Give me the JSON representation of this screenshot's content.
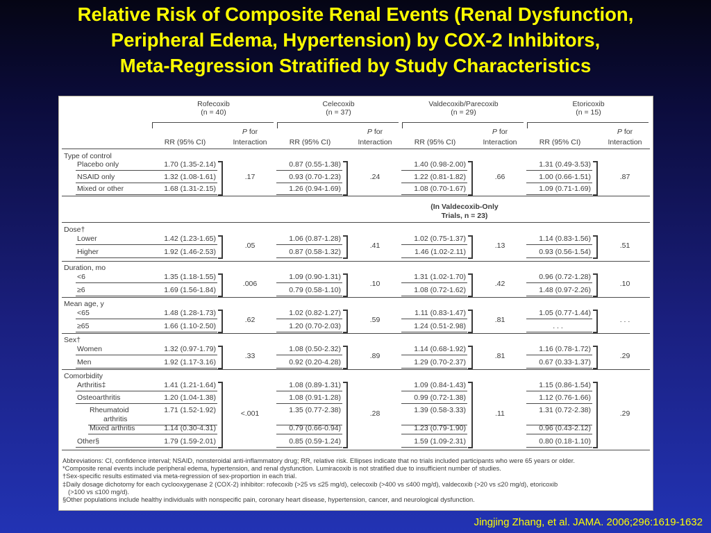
{
  "slide": {
    "title_lines": [
      "Relative Risk of Composite Renal Events (Renal Dysfunction,",
      "Peripheral Edema, Hypertension) by COX-2 Inhibitors,",
      "Meta-Regression Stratified by Study Characteristics"
    ],
    "citation": "Jingjing Zhang,  et al. JAMA. 2006;296:1619-1632"
  },
  "table": {
    "drugs": [
      {
        "name": "Rofecoxib",
        "n": "(n = 40)"
      },
      {
        "name": "Celecoxib",
        "n": "(n = 37)"
      },
      {
        "name": "Valdecoxib/Parecoxib",
        "n": "(n = 29)"
      },
      {
        "name": "Etoricoxib",
        "n": "(n = 15)"
      }
    ],
    "col_rr": "RR (95% CI)",
    "col_p1": "P",
    "col_p2": " for",
    "col_p3": "Interaction",
    "valdecoxib_note_1": "(In Valdecoxib-Only",
    "valdecoxib_note_2": "Trials, n = 23)",
    "sections": [
      {
        "label": "Type of control",
        "rows": [
          {
            "label": "Placebo only",
            "rr": [
              "1.70 (1.35-2.14)",
              "0.87 (0.55-1.38)",
              "1.40 (0.98-2.00)",
              "1.31 (0.49-3.53)"
            ]
          },
          {
            "label": "NSAID only",
            "rr": [
              "1.32 (1.08-1.61)",
              "0.93 (0.70-1.23)",
              "1.22 (0.81-1.82)",
              "1.00 (0.66-1.51)"
            ]
          },
          {
            "label": "Mixed or other",
            "rr": [
              "1.68 (1.31-2.15)",
              "1.26 (0.94-1.69)",
              "1.08 (0.70-1.67)",
              "1.09 (0.71-1.69)"
            ]
          }
        ],
        "p": [
          ".17",
          ".24",
          ".66",
          ".87"
        ]
      },
      {
        "label": "Dose†",
        "rows": [
          {
            "label": "Lower",
            "rr": [
              "1.42 (1.23-1.65)",
              "1.06 (0.87-1.28)",
              "1.02 (0.75-1.37)",
              "1.14 (0.83-1.56)"
            ]
          },
          {
            "label": "Higher",
            "rr": [
              "1.92 (1.46-2.53)",
              "0.87 (0.58-1.32)",
              "1.46 (1.02-2.11)",
              "0.93 (0.56-1.54)"
            ]
          }
        ],
        "p": [
          ".05",
          ".41",
          ".13",
          ".51"
        ]
      },
      {
        "label": "Duration, mo",
        "rows": [
          {
            "label": "<6",
            "rr": [
              "1.35 (1.18-1.55)",
              "1.09 (0.90-1.31)",
              "1.31 (1.02-1.70)",
              "0.96 (0.72-1.28)"
            ]
          },
          {
            "label": "≥6",
            "rr": [
              "1.69 (1.56-1.84)",
              "0.79 (0.58-1.10)",
              "1.08 (0.72-1.62)",
              "1.48 (0.97-2.26)"
            ]
          }
        ],
        "p": [
          ".006",
          ".10",
          ".42",
          ".10"
        ]
      },
      {
        "label": "Mean age, y",
        "rows": [
          {
            "label": "<65",
            "rr": [
              "1.48 (1.28-1.73)",
              "1.02 (0.82-1.27)",
              "1.11 (0.83-1.47)",
              "1.05 (0.77-1.44)"
            ]
          },
          {
            "label": "≥65",
            "rr": [
              "1.66 (1.10-2.50)",
              "1.20 (0.70-2.03)",
              "1.24 (0.51-2.98)",
              ". . ."
            ]
          }
        ],
        "p": [
          ".62",
          ".59",
          ".81",
          ". . ."
        ]
      },
      {
        "label": "Sex†",
        "rows": [
          {
            "label": "Women",
            "rr": [
              "1.32 (0.97-1.79)",
              "1.08 (0.50-2.32)",
              "1.14 (0.68-1.92)",
              "1.16 (0.78-1.72)"
            ]
          },
          {
            "label": "Men",
            "rr": [
              "1.92 (1.17-3.16)",
              "0.92 (0.20-4.28)",
              "1.29 (0.70-2.37)",
              "0.67 (0.33-1.37)"
            ]
          }
        ],
        "p": [
          ".33",
          ".89",
          ".81",
          ".29"
        ]
      },
      {
        "label": "Comorbidity",
        "rows": [
          {
            "label": "Arthritis‡",
            "rr": [
              "1.41 (1.21-1.64)",
              "1.08 (0.89-1.31)",
              "1.09 (0.84-1.43)",
              "1.15 (0.86-1.54)"
            ]
          },
          {
            "label": "Osteoarthritis",
            "rr": [
              "1.20 (1.04-1.38)",
              "1.08 (0.91-1.28)",
              "0.99 (0.72-1.38)",
              "1.12 (0.76-1.66)"
            ]
          },
          {
            "label": "Rheumatoid",
            "label2": "arthritis",
            "rr": [
              "1.71 (1.52-1.92)",
              "1.35 (0.77-2.38)",
              "1.39 (0.58-3.33)",
              "1.31 (0.72-2.38)"
            ]
          },
          {
            "label": "Mixed arthritis",
            "rr": [
              "1.14 (0.30-4.31)",
              "0.79 (0.66-0.94)",
              "1.23 (0.79-1.90)",
              "0.96 (0.43-2.12)"
            ]
          },
          {
            "label": "Other§",
            "rr": [
              "1.79 (1.59-2.01)",
              "0.85 (0.59-1.24)",
              "1.59 (1.09-2.31)",
              "0.80 (0.18-1.10)"
            ]
          }
        ],
        "p": [
          "<.001",
          ".28",
          ".11",
          ".29"
        ]
      }
    ]
  },
  "footnotes": [
    "Abbreviations: CI, confidence interval; NSAID, nonsteroidal anti-inflammatory drug; RR, relative risk. Ellipses indicate that no trials included participants who were 65 years or older.",
    "*Composite renal events include peripheral edema, hypertension, and renal dysfunction. Lumiracoxib is not stratified due to insufficient number of studies.",
    "†Sex-specific results estimated via meta-regression of sex-proportion in each trial.",
    "‡Daily dosage dichotomy for each cyclooxygenase 2 (COX-2) inhibitor: rofecoxib (>25 vs ≤25 mg/d), celecoxib (>400 vs ≤400 mg/d), valdecoxib (>20 vs ≤20 mg/d), etoricoxib",
    "    (>100 vs ≤100 mg/d).",
    "§Other populations include healthy individuals with nonspecific pain, coronary heart disease, hypertension, cancer, and neurological dysfunction."
  ]
}
